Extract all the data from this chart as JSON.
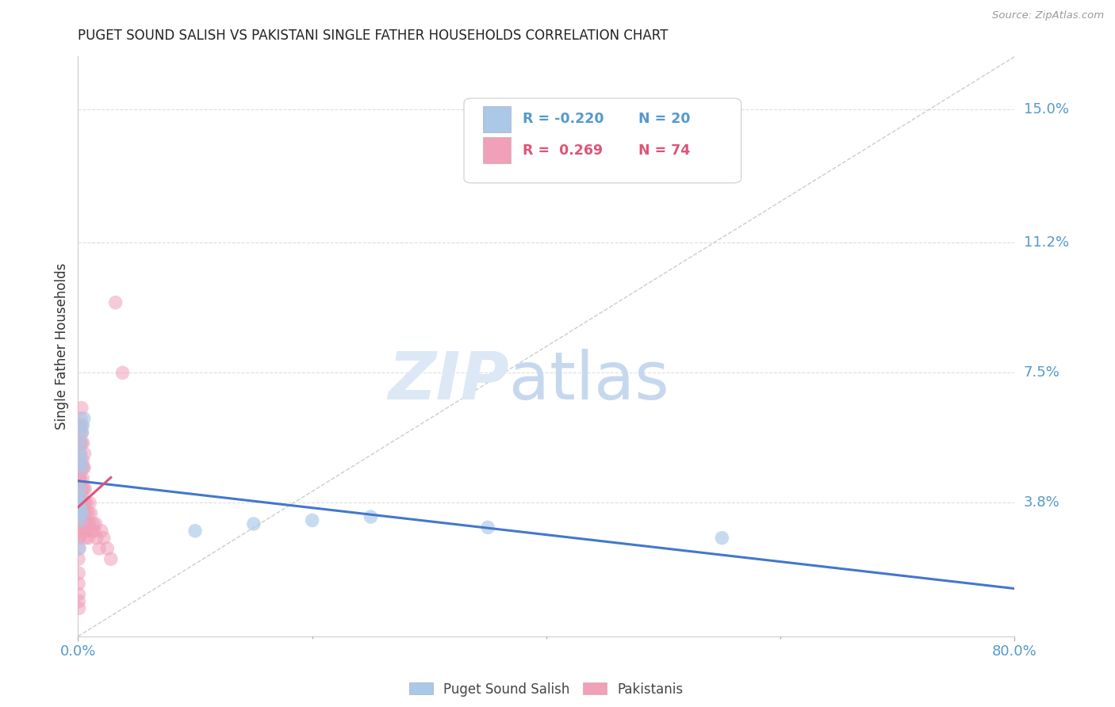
{
  "title": "PUGET SOUND SALISH VS PAKISTANI SINGLE FATHER HOUSEHOLDS CORRELATION CHART",
  "source": "Source: ZipAtlas.com",
  "ylabel": "Single Father Households",
  "ytick_vals": [
    0.038,
    0.075,
    0.112,
    0.15
  ],
  "ytick_labels": [
    "3.8%",
    "7.5%",
    "11.2%",
    "15.0%"
  ],
  "xtick_vals": [
    0.0,
    0.8
  ],
  "xtick_labels": [
    "0.0%",
    "80.0%"
  ],
  "xlim": [
    0.0,
    0.8
  ],
  "ylim": [
    0.0,
    0.165
  ],
  "background_color": "#ffffff",
  "blue_color": "#aac8e8",
  "pink_color": "#f0a0b8",
  "blue_line_color": "#4477cc",
  "pink_line_color": "#dd5577",
  "diag_color": "#cccccc",
  "grid_color": "#dddddd",
  "tick_color": "#5599cc",
  "legend_r1": "R = -0.220",
  "legend_n1": "N = 20",
  "legend_r2": "R =  0.269",
  "legend_n2": "N = 74",
  "legend_color_blue": "#5599cc",
  "legend_color_pink": "#dd5577",
  "blue_scatter_x": [
    0.0008,
    0.0015,
    0.0012,
    0.002,
    0.0018,
    0.0025,
    0.003,
    0.0035,
    0.004,
    0.005,
    0.003,
    0.0022,
    0.0018,
    0.0012,
    0.1,
    0.15,
    0.2,
    0.25,
    0.35,
    0.55
  ],
  "blue_scatter_y": [
    0.04,
    0.042,
    0.038,
    0.052,
    0.055,
    0.05,
    0.048,
    0.058,
    0.06,
    0.062,
    0.035,
    0.036,
    0.033,
    0.025,
    0.03,
    0.032,
    0.033,
    0.034,
    0.031,
    0.028
  ],
  "pink_scatter_x": [
    0.0003,
    0.0004,
    0.0005,
    0.0005,
    0.0006,
    0.0007,
    0.0008,
    0.0008,
    0.0009,
    0.001,
    0.001,
    0.001,
    0.001,
    0.001,
    0.001,
    0.0012,
    0.0013,
    0.0014,
    0.0015,
    0.0015,
    0.0016,
    0.0017,
    0.0018,
    0.0019,
    0.002,
    0.002,
    0.002,
    0.0022,
    0.0023,
    0.0024,
    0.0025,
    0.0026,
    0.003,
    0.003,
    0.003,
    0.0032,
    0.0033,
    0.0035,
    0.004,
    0.004,
    0.004,
    0.0042,
    0.0045,
    0.005,
    0.005,
    0.005,
    0.0052,
    0.0055,
    0.006,
    0.006,
    0.006,
    0.0062,
    0.007,
    0.007,
    0.0072,
    0.008,
    0.008,
    0.009,
    0.009,
    0.01,
    0.01,
    0.011,
    0.012,
    0.013,
    0.014,
    0.015,
    0.016,
    0.018,
    0.02,
    0.022,
    0.025,
    0.028,
    0.032,
    0.038
  ],
  "pink_scatter_y": [
    0.025,
    0.022,
    0.018,
    0.015,
    0.012,
    0.01,
    0.008,
    0.032,
    0.028,
    0.03,
    0.035,
    0.038,
    0.04,
    0.033,
    0.028,
    0.036,
    0.042,
    0.045,
    0.038,
    0.032,
    0.048,
    0.044,
    0.05,
    0.055,
    0.058,
    0.052,
    0.045,
    0.06,
    0.062,
    0.042,
    0.038,
    0.035,
    0.065,
    0.06,
    0.055,
    0.058,
    0.048,
    0.04,
    0.05,
    0.045,
    0.042,
    0.055,
    0.048,
    0.042,
    0.038,
    0.035,
    0.048,
    0.052,
    0.038,
    0.042,
    0.03,
    0.028,
    0.035,
    0.032,
    0.038,
    0.032,
    0.03,
    0.035,
    0.028,
    0.038,
    0.032,
    0.035,
    0.03,
    0.032,
    0.03,
    0.032,
    0.028,
    0.025,
    0.03,
    0.028,
    0.025,
    0.022,
    0.095,
    0.075
  ]
}
